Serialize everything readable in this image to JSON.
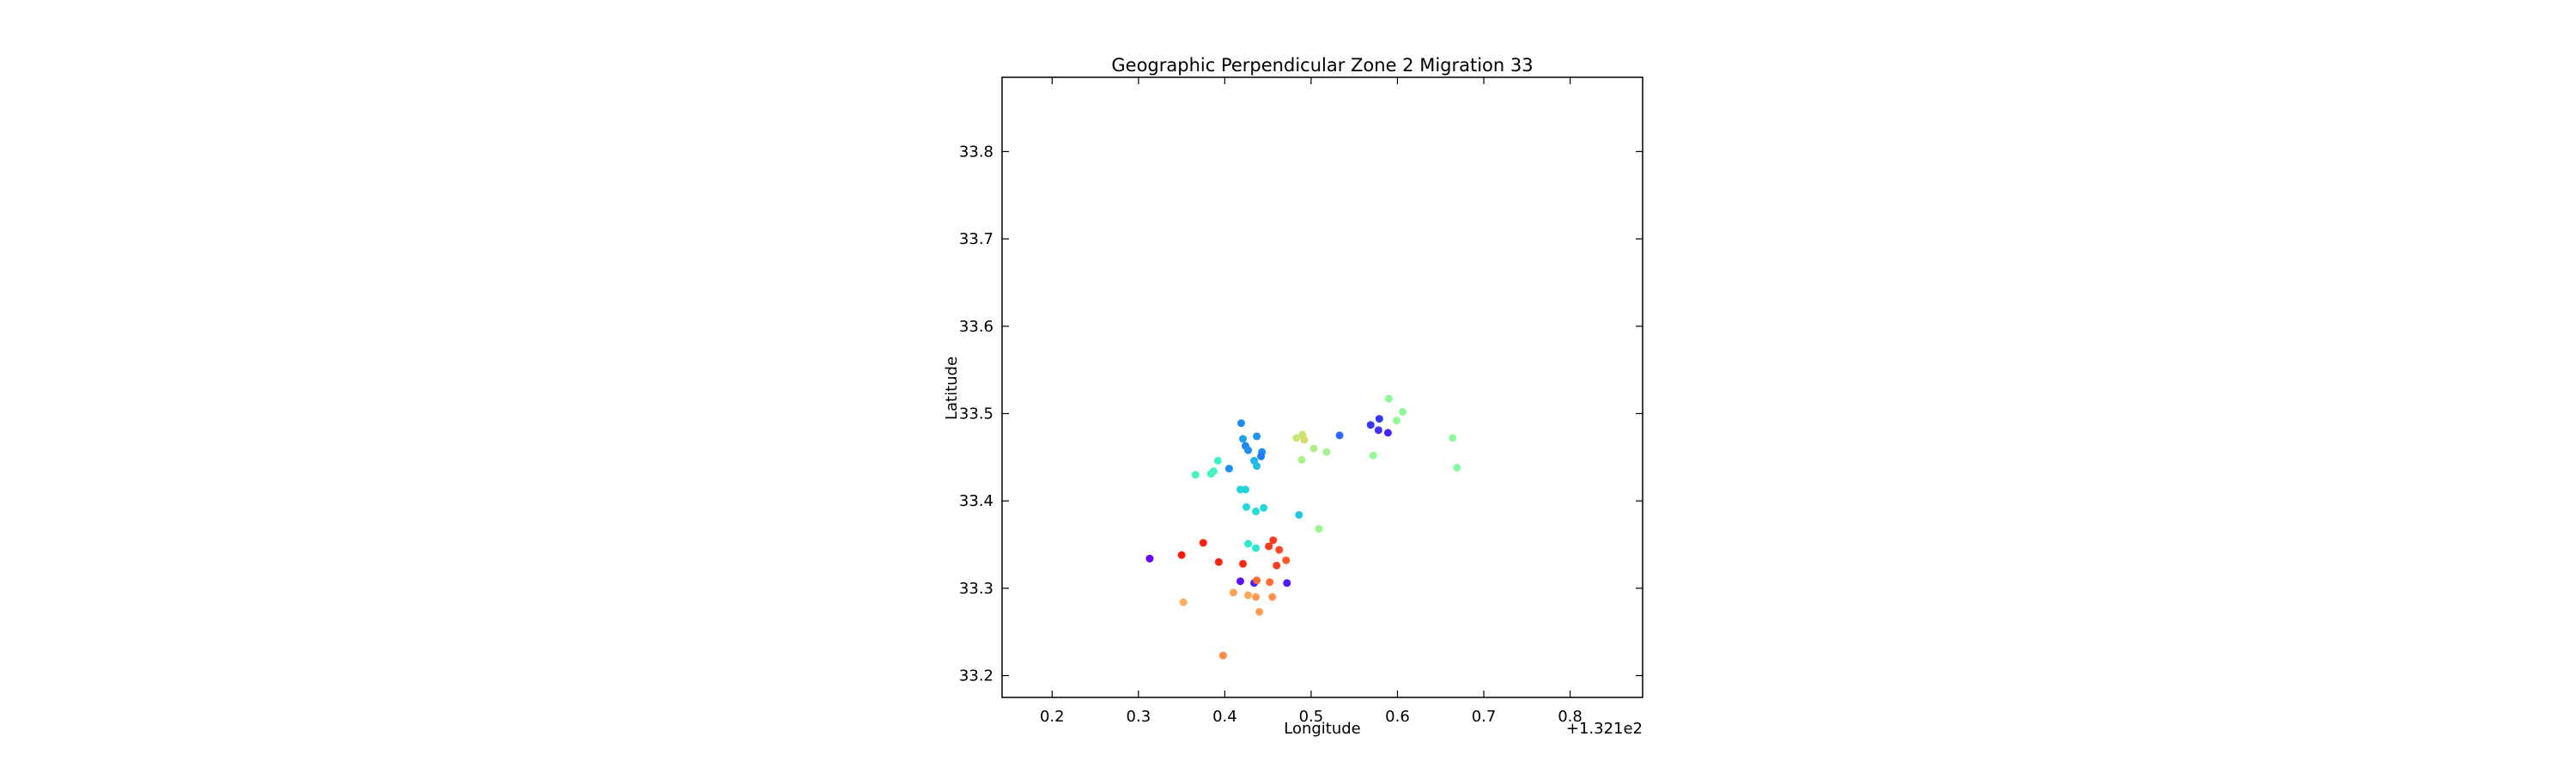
{
  "chart_data": {
    "type": "scatter",
    "title": "Geographic Perpendicular Zone 2 Migration 33",
    "xlabel": "Longitude",
    "ylabel": "Latitude",
    "x_offset_label": "+1.321e2",
    "xlim": [
      0.142,
      0.884
    ],
    "ylim": [
      33.175,
      33.885
    ],
    "xticks": [
      0.2,
      0.3,
      0.4,
      0.5,
      0.6,
      0.7,
      0.8
    ],
    "xtick_labels": [
      "0.2",
      "0.3",
      "0.4",
      "0.5",
      "0.6",
      "0.7",
      "0.8"
    ],
    "yticks": [
      33.2,
      33.3,
      33.4,
      33.5,
      33.6,
      33.7,
      33.8
    ],
    "ytick_labels": [
      "33.2",
      "33.3",
      "33.4",
      "33.5",
      "33.6",
      "33.7",
      "33.8"
    ],
    "grid": false,
    "points": [
      {
        "x": 0.313,
        "y": 33.334,
        "color": "#6a00ff"
      },
      {
        "x": 0.418,
        "y": 33.308,
        "color": "#5a10ff"
      },
      {
        "x": 0.434,
        "y": 33.306,
        "color": "#4b1fff"
      },
      {
        "x": 0.472,
        "y": 33.306,
        "color": "#5218ff"
      },
      {
        "x": 0.579,
        "y": 33.494,
        "color": "#3338ff"
      },
      {
        "x": 0.569,
        "y": 33.487,
        "color": "#3a34ff"
      },
      {
        "x": 0.578,
        "y": 33.481,
        "color": "#3f30ff"
      },
      {
        "x": 0.589,
        "y": 33.478,
        "color": "#4825ff"
      },
      {
        "x": 0.533,
        "y": 33.475,
        "color": "#2b6bff"
      },
      {
        "x": 0.419,
        "y": 33.489,
        "color": "#1b8df2"
      },
      {
        "x": 0.437,
        "y": 33.474,
        "color": "#1b96f0"
      },
      {
        "x": 0.421,
        "y": 33.471,
        "color": "#1ba1ee"
      },
      {
        "x": 0.424,
        "y": 33.463,
        "color": "#1c87f5"
      },
      {
        "x": 0.427,
        "y": 33.458,
        "color": "#1d8ff2"
      },
      {
        "x": 0.443,
        "y": 33.456,
        "color": "#1c90f2"
      },
      {
        "x": 0.442,
        "y": 33.451,
        "color": "#1e7cf8"
      },
      {
        "x": 0.434,
        "y": 33.446,
        "color": "#1db4e7"
      },
      {
        "x": 0.405,
        "y": 33.437,
        "color": "#1e8ef3"
      },
      {
        "x": 0.437,
        "y": 33.44,
        "color": "#1fbfe4"
      },
      {
        "x": 0.418,
        "y": 33.413,
        "color": "#23d2dd"
      },
      {
        "x": 0.424,
        "y": 33.413,
        "color": "#23d4dc"
      },
      {
        "x": 0.425,
        "y": 33.393,
        "color": "#24d9d9"
      },
      {
        "x": 0.436,
        "y": 33.388,
        "color": "#25dcd8"
      },
      {
        "x": 0.445,
        "y": 33.392,
        "color": "#24d8da"
      },
      {
        "x": 0.486,
        "y": 33.384,
        "color": "#1fc8e0"
      },
      {
        "x": 0.427,
        "y": 33.351,
        "color": "#2ce8d2"
      },
      {
        "x": 0.436,
        "y": 33.346,
        "color": "#2fe9cf"
      },
      {
        "x": 0.392,
        "y": 33.446,
        "color": "#3cf2c6"
      },
      {
        "x": 0.387,
        "y": 33.434,
        "color": "#42f4c2"
      },
      {
        "x": 0.366,
        "y": 33.43,
        "color": "#46f4bf"
      },
      {
        "x": 0.384,
        "y": 33.431,
        "color": "#44f5c1"
      },
      {
        "x": 0.59,
        "y": 33.517,
        "color": "#8ff89d"
      },
      {
        "x": 0.606,
        "y": 33.502,
        "color": "#8ef89e"
      },
      {
        "x": 0.599,
        "y": 33.492,
        "color": "#94f79a"
      },
      {
        "x": 0.664,
        "y": 33.472,
        "color": "#8cf99f"
      },
      {
        "x": 0.572,
        "y": 33.452,
        "color": "#98f798"
      },
      {
        "x": 0.669,
        "y": 33.438,
        "color": "#86f9a3"
      },
      {
        "x": 0.509,
        "y": 33.368,
        "color": "#9ef594"
      },
      {
        "x": 0.503,
        "y": 33.46,
        "color": "#b2ee86"
      },
      {
        "x": 0.518,
        "y": 33.456,
        "color": "#a4f390"
      },
      {
        "x": 0.489,
        "y": 33.447,
        "color": "#a9f18c"
      },
      {
        "x": 0.483,
        "y": 33.472,
        "color": "#c6e77a"
      },
      {
        "x": 0.49,
        "y": 33.476,
        "color": "#d0e273"
      },
      {
        "x": 0.492,
        "y": 33.47,
        "color": "#d4df70"
      },
      {
        "x": 0.375,
        "y": 33.352,
        "color": "#ff1f10"
      },
      {
        "x": 0.35,
        "y": 33.338,
        "color": "#ff1a0d"
      },
      {
        "x": 0.393,
        "y": 33.33,
        "color": "#ff200f"
      },
      {
        "x": 0.421,
        "y": 33.328,
        "color": "#ff2712"
      },
      {
        "x": 0.456,
        "y": 33.355,
        "color": "#ff3d1e"
      },
      {
        "x": 0.451,
        "y": 33.348,
        "color": "#ff3a1c"
      },
      {
        "x": 0.463,
        "y": 33.344,
        "color": "#ff4723"
      },
      {
        "x": 0.471,
        "y": 33.332,
        "color": "#ff5a2d"
      },
      {
        "x": 0.46,
        "y": 33.326,
        "color": "#ff3b1d"
      },
      {
        "x": 0.437,
        "y": 33.309,
        "color": "#ff6a36"
      },
      {
        "x": 0.452,
        "y": 33.307,
        "color": "#ff6c37"
      },
      {
        "x": 0.41,
        "y": 33.295,
        "color": "#ffa259"
      },
      {
        "x": 0.427,
        "y": 33.292,
        "color": "#ffa75c"
      },
      {
        "x": 0.436,
        "y": 33.29,
        "color": "#ff9a54"
      },
      {
        "x": 0.455,
        "y": 33.29,
        "color": "#ff9450"
      },
      {
        "x": 0.352,
        "y": 33.284,
        "color": "#ffae60"
      },
      {
        "x": 0.44,
        "y": 33.273,
        "color": "#ff9d56"
      },
      {
        "x": 0.398,
        "y": 33.223,
        "color": "#ff8c4a"
      }
    ]
  }
}
